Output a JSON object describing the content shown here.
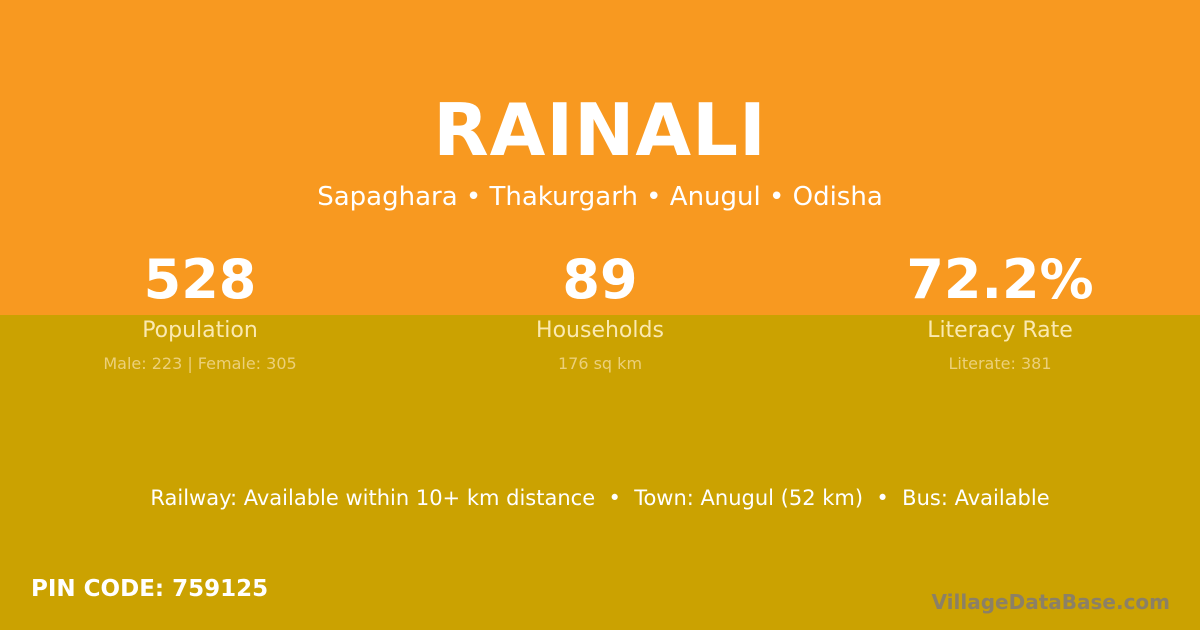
{
  "village": "RAINALI",
  "location": "Sapaghara • Thakurgarh • Anugul • Odisha",
  "stats": [
    {
      "value": "528",
      "label": "Population",
      "detail": "Male: 223 | Female: 305"
    },
    {
      "value": "89",
      "label": "Households",
      "detail": "176 sq km"
    },
    {
      "value": "72.2%",
      "label": "Literacy Rate",
      "detail": "Literate: 381"
    }
  ],
  "connectivity": "Railway: Available within 10+ km distance  •  Town: Anugul (52 km)  •  Bus: Available",
  "pin_code": "PIN CODE: 759125",
  "brand": "VillageDataBase.com",
  "colors": {
    "top": "#f89920",
    "bottom": "#cba201"
  }
}
